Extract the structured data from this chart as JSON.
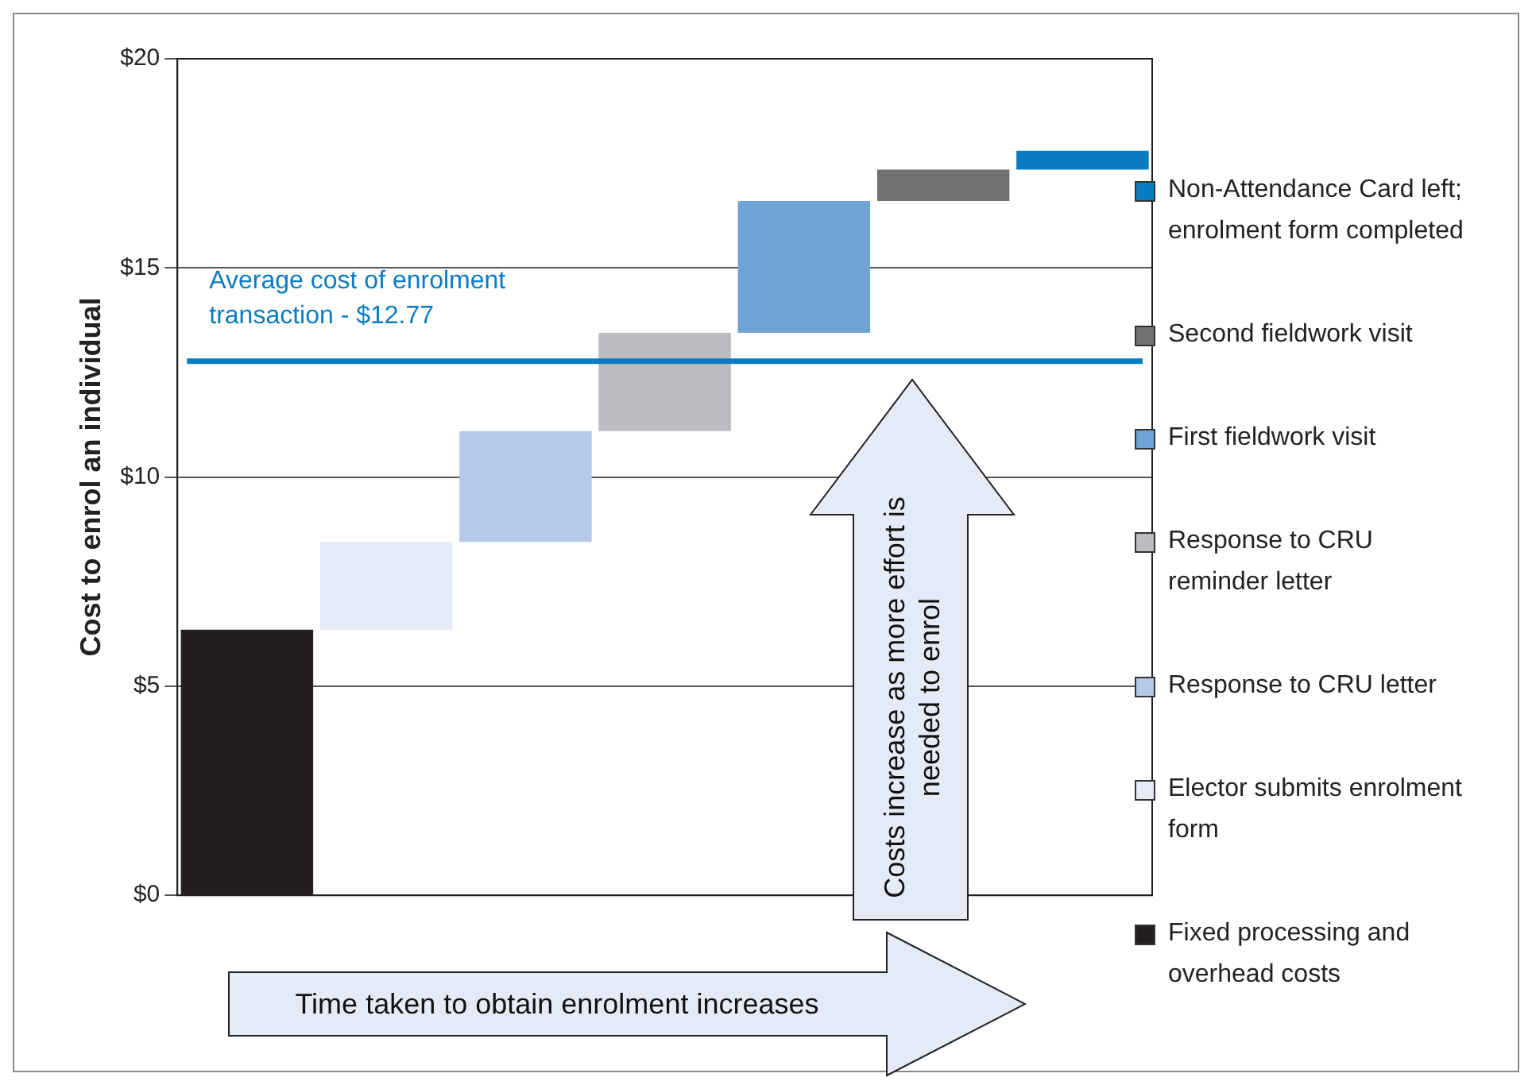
{
  "chart_data": {
    "type": "bar",
    "ylabel": "Cost to enrol an individual",
    "categories": [
      null,
      null,
      null,
      null,
      null,
      null,
      null
    ],
    "series": [
      {
        "name": "Fixed processing and overhead costs",
        "color": "#231f20",
        "values": [
          6.35,
          null,
          null,
          null,
          null,
          null,
          null
        ],
        "base": [
          0,
          null,
          null,
          null,
          null,
          null,
          null
        ]
      },
      {
        "name": "Elector submits enrolment form",
        "color": "#e4ebf6",
        "values": [
          null,
          2.1,
          null,
          null,
          null,
          null,
          null
        ],
        "base": [
          null,
          6.35,
          null,
          null,
          null,
          null,
          null
        ]
      },
      {
        "name": "Response to CRU letter",
        "color": "#b5c8e8",
        "values": [
          null,
          null,
          2.65,
          null,
          null,
          null,
          null
        ],
        "base": [
          null,
          null,
          8.45,
          null,
          null,
          null,
          null
        ]
      },
      {
        "name": "Response to CRU reminder letter",
        "color": "#bbbcbf",
        "values": [
          null,
          null,
          null,
          2.35,
          null,
          null,
          null
        ],
        "base": [
          null,
          null,
          null,
          11.1,
          null,
          null,
          null
        ]
      },
      {
        "name": "First fieldwork visit",
        "color": "#6fa3d6",
        "values": [
          null,
          null,
          null,
          null,
          3.15,
          null,
          null
        ],
        "base": [
          null,
          null,
          null,
          null,
          13.45,
          null,
          null
        ]
      },
      {
        "name": "Second fieldwork visit",
        "color": "#707173",
        "values": [
          null,
          null,
          null,
          null,
          null,
          0.75,
          null
        ],
        "base": [
          null,
          null,
          null,
          null,
          null,
          16.6,
          null
        ]
      },
      {
        "name": "Non-Attendance Card left; enrolment form completed",
        "color": "#0a7cc2",
        "values": [
          null,
          null,
          null,
          null,
          null,
          null,
          0.45
        ],
        "base": [
          null,
          null,
          null,
          null,
          null,
          null,
          17.35
        ]
      }
    ],
    "ylim": [
      0,
      20
    ],
    "yticks": [
      {
        "value": 0,
        "label": "$0"
      },
      {
        "value": 5,
        "label": "$5"
      },
      {
        "value": 10,
        "label": "$10"
      },
      {
        "value": 15,
        "label": "$15"
      },
      {
        "value": 20,
        "label": "$20"
      }
    ],
    "ref_lines": [
      {
        "axis": "y",
        "value": 12.77,
        "label": "Average cost of enrolment transaction - $12.77",
        "color": "#0a7cc2"
      }
    ],
    "annotations": [
      "Time taken to obtain enrolment increases",
      "Costs increase as more effort is needed to enrol"
    ],
    "grid": "y",
    "legend": "right"
  }
}
